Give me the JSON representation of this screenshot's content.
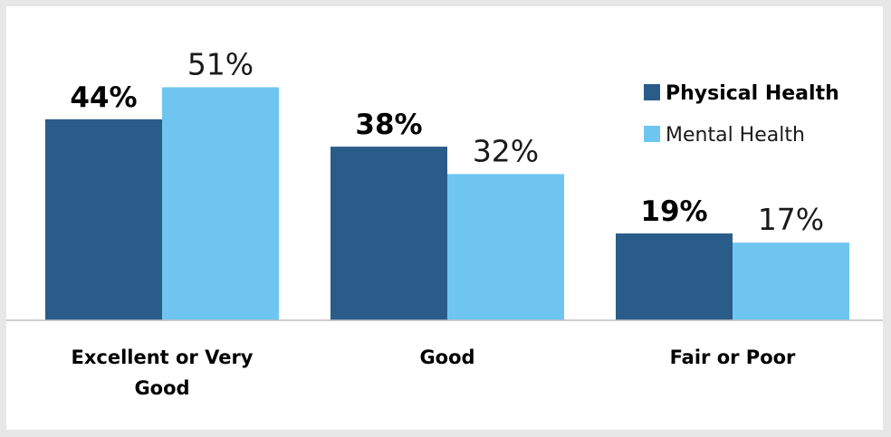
{
  "chart_data": {
    "type": "bar",
    "categories": [
      "Excellent or Very Good",
      "Good",
      "Fair or Poor"
    ],
    "category_label_lines": [
      [
        "Excellent or Very",
        "Good"
      ],
      [
        "Good"
      ],
      [
        "Fair or Poor"
      ]
    ],
    "series": [
      {
        "name": "Physical Health",
        "values": [
          44,
          38,
          19
        ],
        "labels": [
          "44%",
          "38%",
          "19%"
        ],
        "color": "#2a5c8a"
      },
      {
        "name": "Mental Health",
        "values": [
          51,
          32,
          17
        ],
        "labels": [
          "51%",
          "32%",
          "17%"
        ],
        "color": "#6ec6f0"
      }
    ],
    "ylim": [
      0,
      100
    ],
    "grid": false,
    "legend_position": "top-right",
    "axis_color": "#bfbfbf"
  }
}
